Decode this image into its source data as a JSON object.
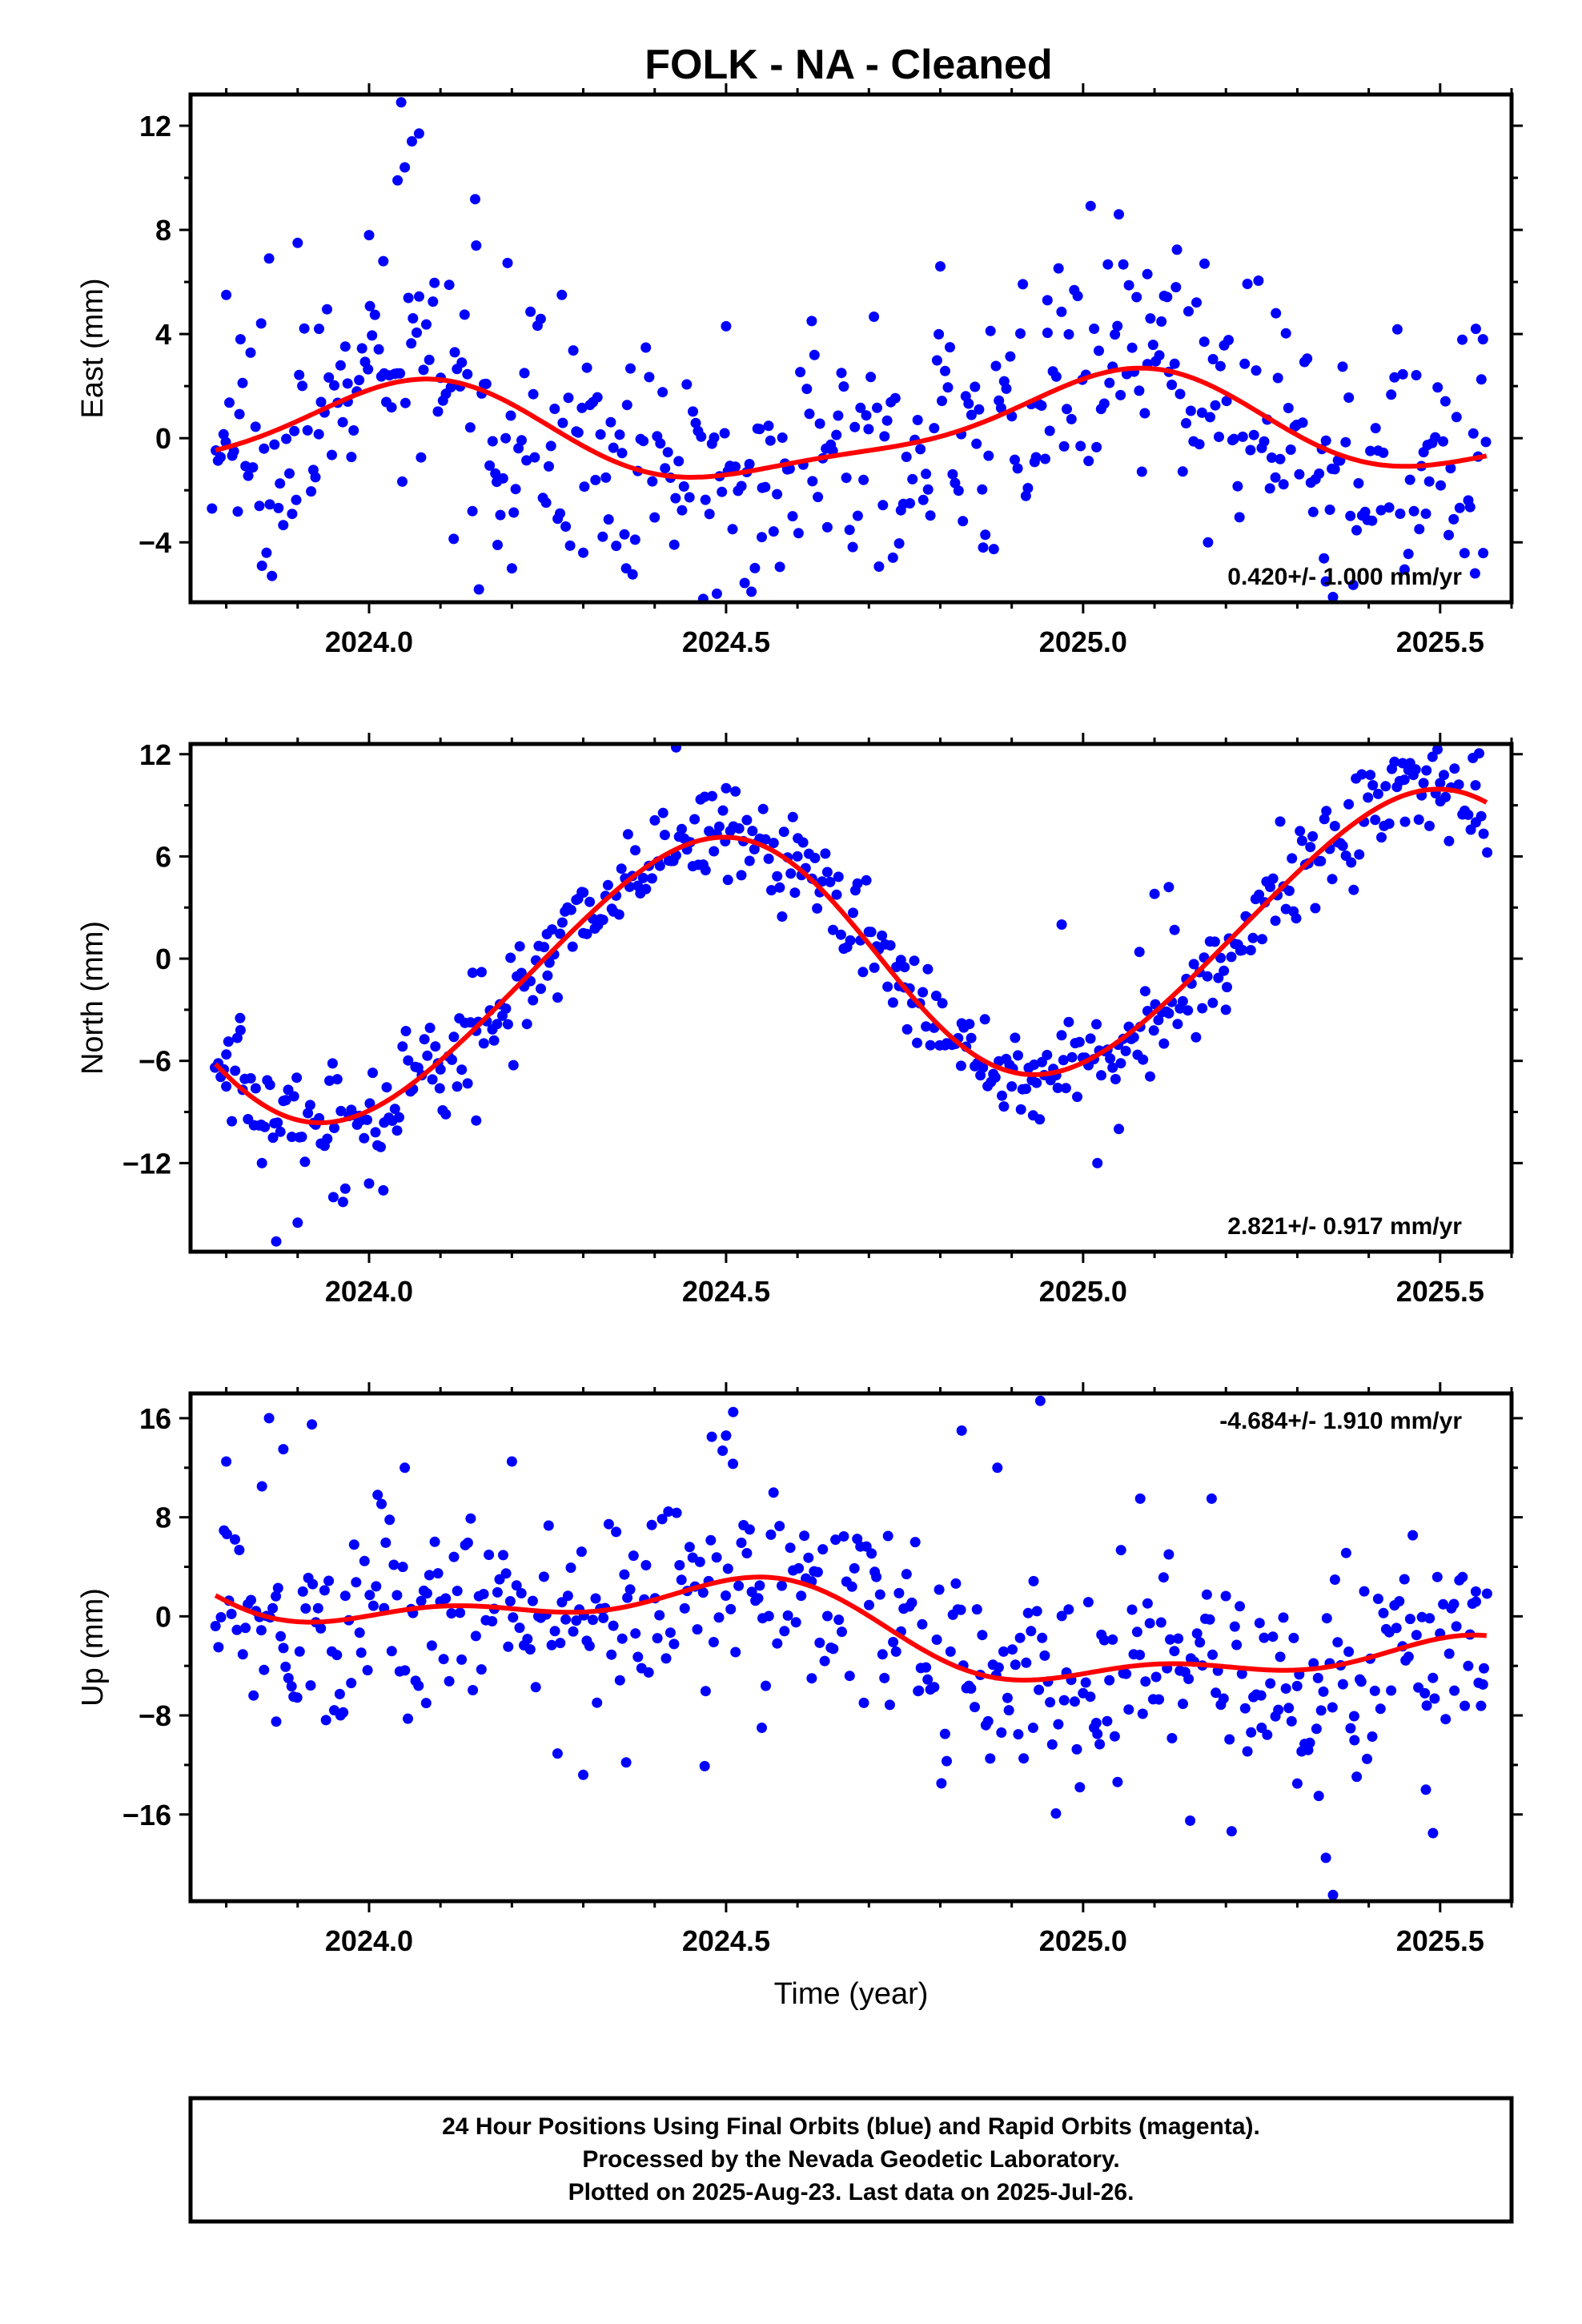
{
  "title": "FOLK  - NA - Cleaned",
  "footer": {
    "lines": [
      "24 Hour Positions Using Final Orbits (blue) and Rapid Orbits (magenta).",
      "Processed by the Nevada Geodetic Laboratory.",
      "Plotted on 2025-Aug-23. Last data on 2025-Jul-26."
    ]
  },
  "colors": {
    "final_orbits": "#0000ff",
    "fit_curve": "#ff0000"
  },
  "chart_data": [
    {
      "type": "scatter",
      "id": "east",
      "title": "",
      "ylabel": "East (mm)",
      "xlabel": "",
      "xlim": [
        2023.75,
        2025.6
      ],
      "ylim": [
        -6.3,
        13.2
      ],
      "xticks": [
        "2024.0",
        "2024.5",
        "2025.0",
        "2025.5"
      ],
      "xtick_values": [
        2024.0,
        2024.5,
        2025.0,
        2025.5
      ],
      "yticks": [
        "12",
        "8",
        "4",
        "0",
        "−4"
      ],
      "ytick_values": [
        12,
        8,
        4,
        0,
        -4
      ],
      "rate_label": "0.420+/- 1.000 mm/yr",
      "rate_position": "bottom-right",
      "model": {
        "offset": 0.3,
        "rate": 0.42,
        "ref_epoch": 2024.67,
        "a1": 1.8,
        "p1": 1.3,
        "a2": 0.5,
        "p2": 0.2
      },
      "noise_sd": 2.2,
      "series": [
        {
          "name": "Final Orbits",
          "style": "dots",
          "points": [
            [
              2023.78,
              -2.7
            ],
            [
              2023.8,
              5.5
            ],
            [
              2023.82,
              3.8
            ],
            [
              2023.85,
              -4.9
            ],
            [
              2023.86,
              6.9
            ],
            [
              2023.9,
              7.5
            ],
            [
              2023.93,
              4.2
            ],
            [
              2023.97,
              2.1
            ],
            [
              2024.0,
              7.8
            ],
            [
              2024.02,
              6.8
            ],
            [
              2024.04,
              9.9
            ],
            [
              2024.05,
              10.4
            ],
            [
              2024.06,
              11.4
            ],
            [
              2024.07,
              11.7
            ],
            [
              2024.045,
              12.9
            ],
            [
              2024.12,
              3.3
            ],
            [
              2024.15,
              7.4
            ],
            [
              2024.18,
              -4.1
            ],
            [
              2024.2,
              -5.0
            ],
            [
              2024.27,
              5.5
            ],
            [
              2024.3,
              -4.4
            ],
            [
              2024.36,
              -5.0
            ],
            [
              2024.5,
              4.3
            ],
            [
              2024.55,
              -3.8
            ],
            [
              2024.62,
              4.5
            ],
            [
              2024.8,
              6.6
            ],
            [
              2024.86,
              -4.2
            ],
            [
              2024.95,
              5.3
            ],
            [
              2025.05,
              8.6
            ],
            [
              2025.09,
              6.3
            ],
            [
              2025.13,
              5.8
            ],
            [
              2025.17,
              6.7
            ],
            [
              2025.27,
              4.8
            ],
            [
              2025.34,
              -5.5
            ],
            [
              2025.35,
              -6.1
            ],
            [
              2025.48,
              -2.9
            ],
            [
              2025.55,
              4.2
            ],
            [
              2025.56,
              3.8
            ]
          ]
        },
        {
          "name": "Fit",
          "style": "line"
        }
      ]
    },
    {
      "type": "scatter",
      "id": "north",
      "title": "",
      "ylabel": "North (mm)",
      "xlabel": "",
      "xlim": [
        2023.75,
        2025.6
      ],
      "ylim": [
        -17.2,
        12.6
      ],
      "xticks": [
        "2024.0",
        "2024.5",
        "2025.0",
        "2025.5"
      ],
      "xtick_values": [
        2024.0,
        2024.5,
        2025.0,
        2025.5
      ],
      "yticks": [
        "12",
        "6",
        "0",
        "−6",
        "−12"
      ],
      "ytick_values": [
        12,
        6,
        0,
        -6,
        -12
      ],
      "rate_label": "2.821+/- 0.917 mm/yr",
      "rate_position": "bottom-right",
      "model": {
        "offset": 0.0,
        "rate": 2.821,
        "ref_epoch": 2024.67,
        "a1": 7.5,
        "p1": -1.35,
        "a2": 0.6,
        "p2": 0.5
      },
      "noise_sd": 1.6,
      "series": [
        {
          "name": "Final Orbits",
          "style": "dots",
          "points": [
            [
              2023.8,
              -7.5
            ],
            [
              2023.82,
              -4.2
            ],
            [
              2023.85,
              -12.0
            ],
            [
              2023.87,
              -16.6
            ],
            [
              2023.9,
              -15.5
            ],
            [
              2023.95,
              -14.0
            ],
            [
              2024.0,
              -13.2
            ],
            [
              2024.02,
              -13.6
            ],
            [
              2024.1,
              -6.5
            ],
            [
              2024.15,
              -9.5
            ],
            [
              2024.25,
              -1.0
            ],
            [
              2024.3,
              1.5
            ],
            [
              2024.43,
              12.4
            ],
            [
              2024.47,
              9.5
            ],
            [
              2024.5,
              10.0
            ],
            [
              2024.6,
              6.0
            ],
            [
              2024.75,
              -0.5
            ],
            [
              2024.83,
              -3.8
            ],
            [
              2024.9,
              -7.5
            ],
            [
              2024.93,
              -9.2
            ],
            [
              2024.97,
              2.0
            ],
            [
              2025.02,
              -12.0
            ],
            [
              2025.05,
              -10.0
            ],
            [
              2025.08,
              -4.0
            ],
            [
              2025.1,
              3.8
            ],
            [
              2025.12,
              4.2
            ],
            [
              2025.2,
              -3.0
            ],
            [
              2025.45,
              10.5
            ],
            [
              2025.5,
              10.3
            ],
            [
              2025.55,
              8.0
            ]
          ]
        },
        {
          "name": "Fit",
          "style": "line"
        }
      ]
    },
    {
      "type": "scatter",
      "id": "up",
      "title": "",
      "ylabel": "Up (mm)",
      "xlabel": "Time (year)",
      "xlim": [
        2023.75,
        2025.6
      ],
      "ylim": [
        -23.0,
        18.0
      ],
      "xticks": [
        "2024.0",
        "2024.5",
        "2025.0",
        "2025.5"
      ],
      "xtick_values": [
        2024.0,
        2024.5,
        2025.0,
        2025.5
      ],
      "yticks": [
        "16",
        "8",
        "0",
        "−8",
        "−16"
      ],
      "ytick_values": [
        16,
        8,
        0,
        -8,
        -16
      ],
      "rate_label": "-4.684+/- 1.910 mm/yr",
      "rate_position": "top-right",
      "model": {
        "offset": -1.0,
        "rate": -4.684,
        "ref_epoch": 2024.67,
        "a1": 2.6,
        "p1": -1.6,
        "a2": 1.3,
        "p2": 0.4
      },
      "noise_sd": 4.0,
      "series": [
        {
          "name": "Final Orbits",
          "style": "dots",
          "points": [
            [
              2023.8,
              12.5
            ],
            [
              2023.85,
              10.5
            ],
            [
              2023.86,
              16.0
            ],
            [
              2023.88,
              13.5
            ],
            [
              2023.92,
              15.5
            ],
            [
              2023.87,
              -8.5
            ],
            [
              2023.96,
              -8.0
            ],
            [
              2024.05,
              12.0
            ],
            [
              2024.08,
              -7.0
            ],
            [
              2024.2,
              12.5
            ],
            [
              2024.3,
              -12.8
            ],
            [
              2024.36,
              -11.8
            ],
            [
              2024.47,
              -12.1
            ],
            [
              2024.48,
              14.5
            ],
            [
              2024.5,
              14.6
            ],
            [
              2024.51,
              16.5
            ],
            [
              2024.55,
              -9.0
            ],
            [
              2024.62,
              -5.0
            ],
            [
              2024.77,
              -6.0
            ],
            [
              2024.83,
              15.0
            ],
            [
              2024.88,
              12.0
            ],
            [
              2024.93,
              -9.0
            ],
            [
              2024.94,
              17.4
            ],
            [
              2025.02,
              -9.5
            ],
            [
              2025.08,
              9.5
            ],
            [
              2025.12,
              5.0
            ],
            [
              2025.15,
              -16.5
            ],
            [
              2025.18,
              9.5
            ],
            [
              2025.25,
              -9.0
            ],
            [
              2025.3,
              -13.5
            ],
            [
              2025.33,
              -14.5
            ],
            [
              2025.34,
              -19.5
            ],
            [
              2025.35,
              -22.5
            ],
            [
              2025.38,
              -10.0
            ],
            [
              2025.45,
              3.0
            ],
            [
              2025.48,
              -14.0
            ],
            [
              2025.49,
              -17.5
            ],
            [
              2025.52,
              -6.0
            ],
            [
              2025.55,
              2.0
            ],
            [
              2025.56,
              -5.5
            ]
          ]
        },
        {
          "name": "Fit",
          "style": "line"
        }
      ]
    }
  ]
}
